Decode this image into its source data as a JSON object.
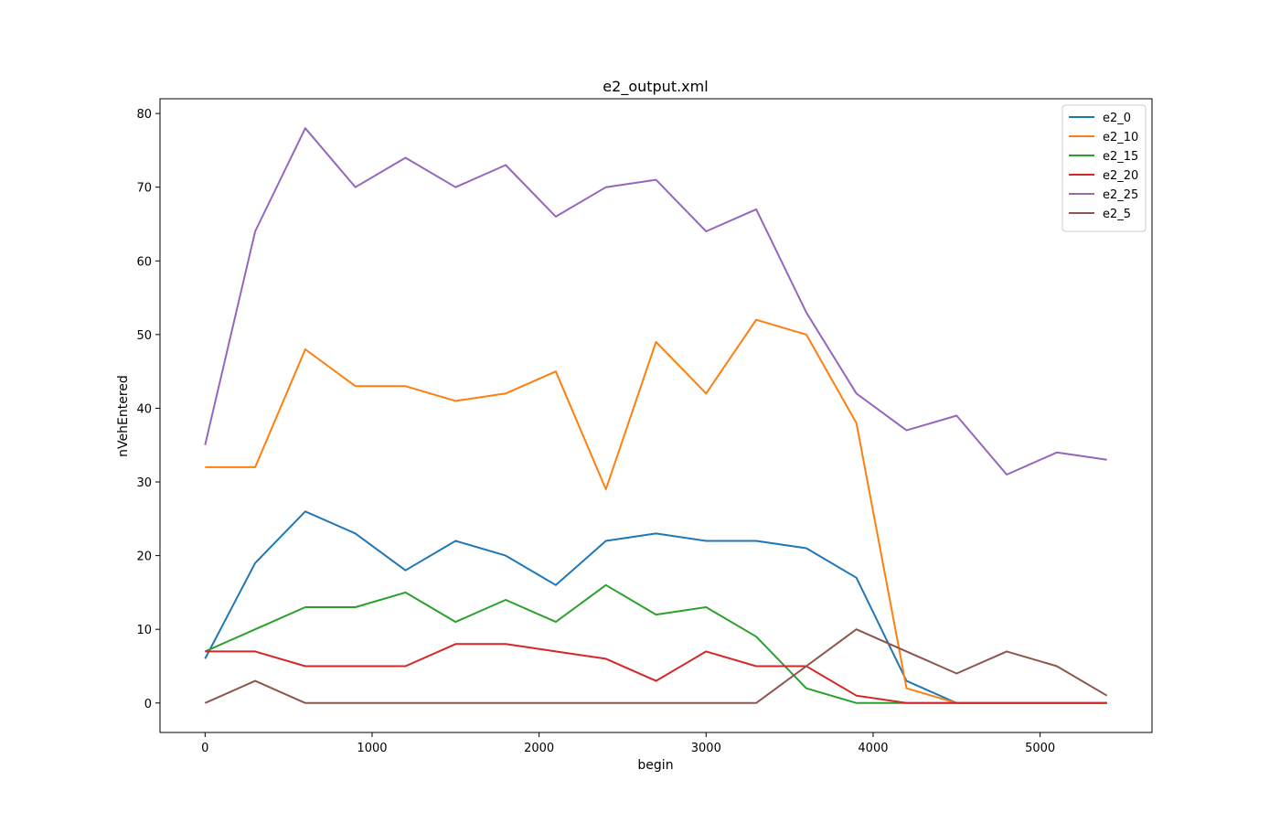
{
  "chart_data": {
    "type": "line",
    "title": "e2_output.xml",
    "xlabel": "begin",
    "ylabel": "nVehEntered",
    "xlim": [
      -270,
      5670
    ],
    "ylim": [
      -4,
      82
    ],
    "xticks": [
      0,
      1000,
      2000,
      3000,
      4000,
      5000
    ],
    "yticks": [
      0,
      10,
      20,
      30,
      40,
      50,
      60,
      70,
      80
    ],
    "grid": false,
    "legend_position": "top-right",
    "x": [
      0,
      300,
      600,
      900,
      1200,
      1500,
      1800,
      2100,
      2400,
      2700,
      3000,
      3300,
      3600,
      3900,
      4200,
      4500,
      4800,
      5100,
      5400
    ],
    "series": [
      {
        "name": "e2_0",
        "color": "#1f77b4",
        "values": [
          6,
          19,
          26,
          23,
          18,
          22,
          20,
          16,
          22,
          23,
          22,
          22,
          21,
          17,
          3,
          0,
          0,
          0,
          0
        ]
      },
      {
        "name": "e2_10",
        "color": "#ff7f0e",
        "values": [
          32,
          32,
          48,
          43,
          43,
          41,
          42,
          45,
          29,
          49,
          42,
          52,
          50,
          38,
          2,
          0,
          0,
          0,
          0
        ]
      },
      {
        "name": "e2_15",
        "color": "#2ca02c",
        "values": [
          7,
          10,
          13,
          13,
          15,
          11,
          14,
          11,
          16,
          12,
          13,
          9,
          2,
          0,
          0,
          0,
          0,
          0,
          0
        ]
      },
      {
        "name": "e2_20",
        "color": "#d62728",
        "values": [
          7,
          7,
          5,
          5,
          5,
          8,
          8,
          7,
          6,
          3,
          7,
          5,
          5,
          1,
          0,
          0,
          0,
          0,
          0
        ]
      },
      {
        "name": "e2_25",
        "color": "#9467bd",
        "values": [
          35,
          64,
          78,
          70,
          74,
          70,
          73,
          66,
          70,
          71,
          64,
          67,
          53,
          42,
          37,
          39,
          31,
          34,
          33
        ]
      },
      {
        "name": "e2_5",
        "color": "#8c564b",
        "values": [
          0,
          3,
          0,
          0,
          0,
          0,
          0,
          0,
          0,
          0,
          0,
          0,
          5,
          10,
          7,
          4,
          7,
          5,
          1
        ]
      }
    ]
  }
}
